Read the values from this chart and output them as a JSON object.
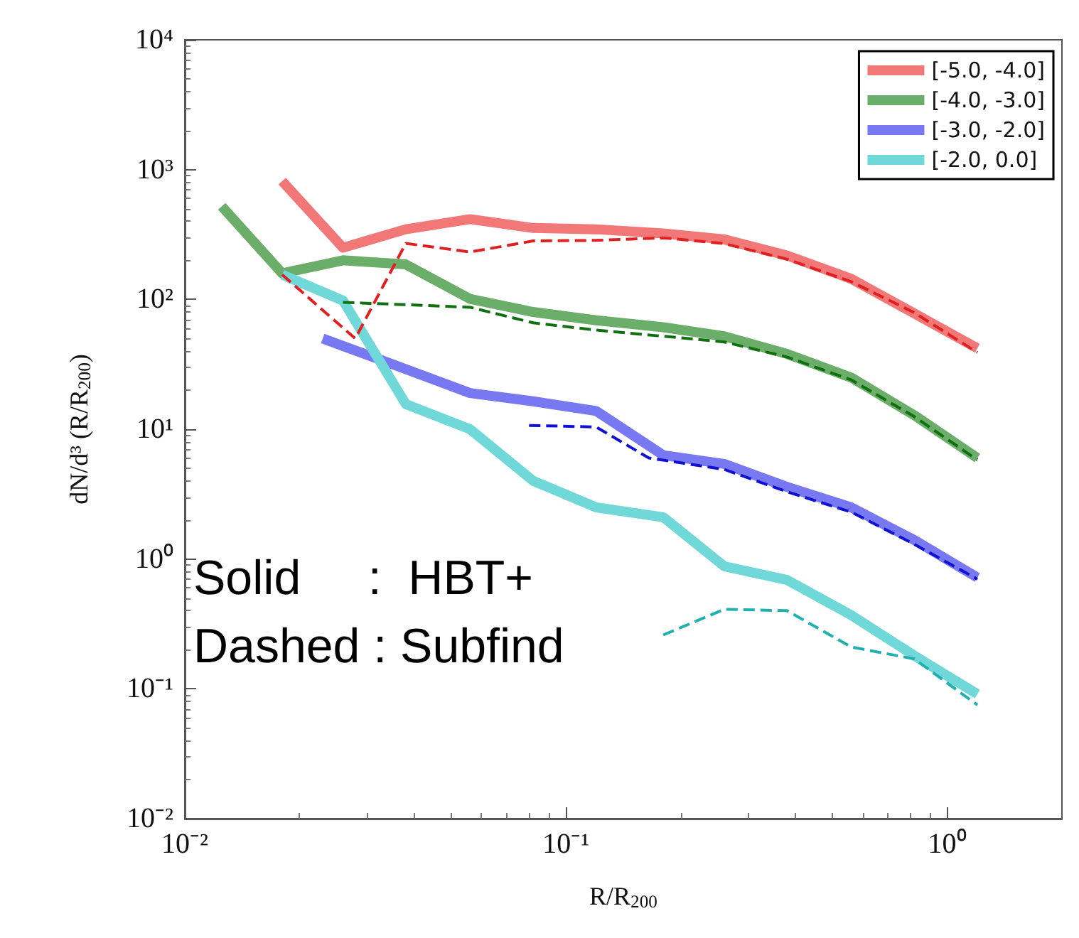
{
  "chart_data": {
    "type": "line",
    "xlabel": "R/R$_{200}$",
    "ylabel": "dN/d³ (R/R$_{200}$)",
    "log": "xy",
    "grid": false,
    "legend": "top right",
    "marker": "none",
    "xlim": [
      0.01,
      2
    ],
    "xticks": [
      {
        "value": 0.01,
        "label": "10⁻²"
      },
      {
        "value": 0.1,
        "label": "10⁻¹"
      },
      {
        "value": 1,
        "label": "10⁰"
      }
    ],
    "ylim": [
      0.01,
      10000
    ],
    "yticks": [
      {
        "value": 0.01,
        "label": "10⁻²"
      },
      {
        "value": 0.1,
        "label": "10⁻¹"
      },
      {
        "value": 1,
        "label": "10⁰"
      },
      {
        "value": 10,
        "label": "10¹"
      },
      {
        "value": 100,
        "label": "10²"
      },
      {
        "value": 1000,
        "label": "10³"
      },
      {
        "value": 10000,
        "label": "10⁴"
      }
    ],
    "annotations": [
      "Solid     :  HBT+",
      "Dashed : Subfind"
    ],
    "series": [
      {
        "name": "[-5.0, -4.0]",
        "color": "#f27878",
        "line_style": "solid",
        "x": [
          0.018,
          0.026,
          0.038,
          0.056,
          0.082,
          0.12,
          0.18,
          0.26,
          0.38,
          0.56,
          0.82,
          1.2
        ],
        "values": [
          815,
          250,
          347,
          415,
          355,
          347,
          322,
          290,
          218,
          144,
          78,
          42
        ]
      },
      {
        "name": "[-4.0, -3.0]",
        "color": "#6aae6a",
        "line_style": "solid",
        "x": [
          0.0125,
          0.018,
          0.026,
          0.038,
          0.056,
          0.082,
          0.12,
          0.18,
          0.26,
          0.38,
          0.56,
          0.82,
          1.2
        ],
        "values": [
          521,
          159,
          200,
          186,
          101,
          80,
          69,
          61,
          52,
          38,
          25,
          12.8,
          6
        ]
      },
      {
        "name": "[-3.0, -2.0]",
        "color": "#7878f2",
        "line_style": "solid",
        "x": [
          0.023,
          0.038,
          0.056,
          0.082,
          0.12,
          0.18,
          0.26,
          0.38,
          0.56,
          0.82,
          1.2
        ],
        "values": [
          50,
          29,
          19,
          16.4,
          13.8,
          6.3,
          5.4,
          3.6,
          2.5,
          1.4,
          0.72
        ]
      },
      {
        "name": "[-2.0, 0.0]",
        "color": "#70d8d8",
        "line_style": "solid",
        "x": [
          0.018,
          0.026,
          0.038,
          0.056,
          0.082,
          0.12,
          0.18,
          0.26,
          0.38,
          0.56,
          0.82,
          1.2
        ],
        "values": [
          155,
          98,
          15.6,
          10,
          4,
          2.5,
          2.1,
          0.88,
          0.69,
          0.37,
          0.18,
          0.091
        ]
      },
      {
        "color": "#e02020",
        "line_style": "dashed",
        "x": [
          0.018,
          0.028,
          0.038,
          0.056,
          0.082,
          0.12,
          0.18,
          0.26,
          0.38,
          0.56,
          0.82,
          1.2
        ],
        "values": [
          155,
          50,
          270,
          232,
          282,
          285,
          298,
          269,
          204,
          137,
          79,
          39
        ]
      },
      {
        "color": "#107010",
        "line_style": "dashed",
        "x": [
          0.026,
          0.038,
          0.056,
          0.082,
          0.12,
          0.18,
          0.26,
          0.38,
          0.56,
          0.82,
          1.2
        ],
        "values": [
          95,
          91,
          87,
          66,
          58,
          52,
          47,
          36,
          24,
          12.5,
          5.8
        ]
      },
      {
        "color": "#1010d0",
        "line_style": "dashed",
        "x": [
          0.08,
          0.12,
          0.165,
          0.26,
          0.38,
          0.56,
          0.82,
          1.2
        ],
        "values": [
          10.7,
          10.4,
          6,
          4.9,
          3.3,
          2.3,
          1.3,
          0.7
        ]
      },
      {
        "color": "#20b0b0",
        "line_style": "dashed",
        "x": [
          0.18,
          0.26,
          0.38,
          0.56,
          0.82,
          1.2
        ],
        "values": [
          0.26,
          0.41,
          0.4,
          0.21,
          0.17,
          0.075
        ]
      }
    ]
  }
}
